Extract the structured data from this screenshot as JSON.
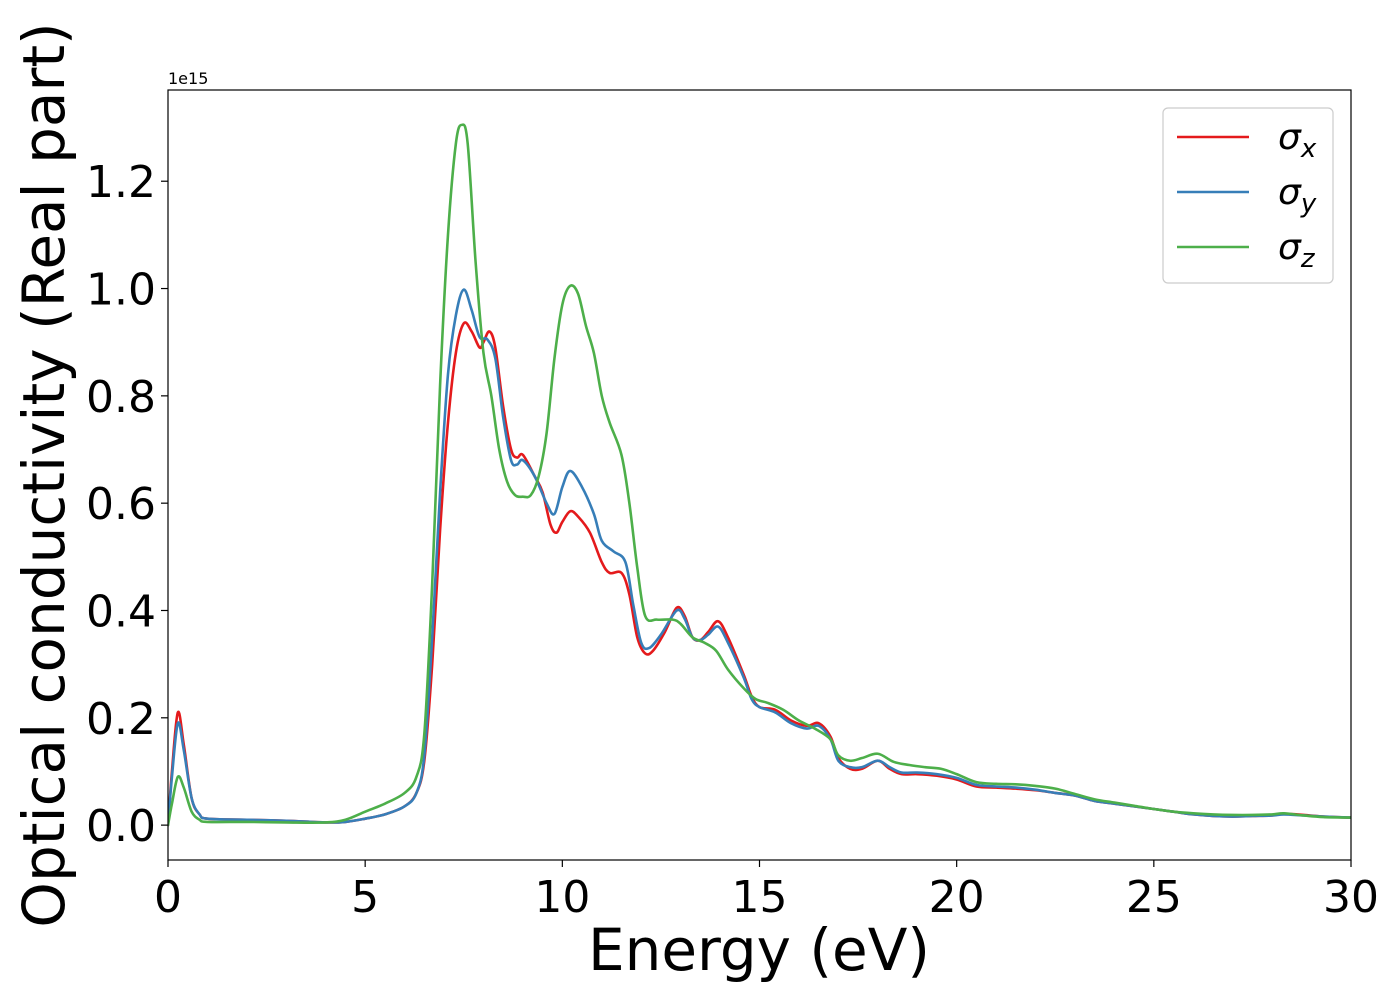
{
  "chart_data": {
    "type": "line",
    "xlabel": "Energy (eV)",
    "ylabel": "Optical conductivity (Real part)",
    "y_offset_label": "1e15",
    "y_multiplier": 1000000000000000.0,
    "xlim": [
      0,
      30
    ],
    "ylim": [
      -0.065,
      1.37
    ],
    "xticks": [
      0,
      5,
      10,
      15,
      20,
      25,
      30
    ],
    "xtick_labels": [
      "0",
      "5",
      "10",
      "15",
      "20",
      "25",
      "30"
    ],
    "yticks": [
      0.0,
      0.2,
      0.4,
      0.6,
      0.8,
      1.0,
      1.2
    ],
    "ytick_labels": [
      "0.0",
      "0.2",
      "0.4",
      "0.6",
      "0.8",
      "1.0",
      "1.2"
    ],
    "grid": false,
    "legend_position": "top-right",
    "series": [
      {
        "name": "σx",
        "name_base": "σ",
        "name_sub": "x",
        "color": "#e41a1c",
        "points": [
          [
            0,
            0.0
          ],
          [
            0.1,
            0.1
          ],
          [
            0.25,
            0.21
          ],
          [
            0.4,
            0.15
          ],
          [
            0.6,
            0.05
          ],
          [
            0.8,
            0.02
          ],
          [
            1.0,
            0.012
          ],
          [
            2,
            0.01
          ],
          [
            3,
            0.008
          ],
          [
            4,
            0.005
          ],
          [
            4.5,
            0.006
          ],
          [
            5,
            0.012
          ],
          [
            5.5,
            0.02
          ],
          [
            6,
            0.035
          ],
          [
            6.3,
            0.06
          ],
          [
            6.5,
            0.12
          ],
          [
            6.7,
            0.3
          ],
          [
            6.9,
            0.55
          ],
          [
            7.1,
            0.75
          ],
          [
            7.3,
            0.88
          ],
          [
            7.5,
            0.935
          ],
          [
            7.7,
            0.92
          ],
          [
            7.9,
            0.89
          ],
          [
            8.0,
            0.9
          ],
          [
            8.15,
            0.92
          ],
          [
            8.3,
            0.89
          ],
          [
            8.5,
            0.78
          ],
          [
            8.7,
            0.7
          ],
          [
            8.85,
            0.685
          ],
          [
            9.0,
            0.69
          ],
          [
            9.3,
            0.65
          ],
          [
            9.5,
            0.62
          ],
          [
            9.7,
            0.56
          ],
          [
            9.85,
            0.545
          ],
          [
            10.0,
            0.565
          ],
          [
            10.2,
            0.585
          ],
          [
            10.4,
            0.575
          ],
          [
            10.7,
            0.545
          ],
          [
            11.0,
            0.49
          ],
          [
            11.2,
            0.47
          ],
          [
            11.5,
            0.47
          ],
          [
            11.7,
            0.43
          ],
          [
            11.9,
            0.35
          ],
          [
            12.1,
            0.32
          ],
          [
            12.3,
            0.325
          ],
          [
            12.6,
            0.36
          ],
          [
            12.9,
            0.405
          ],
          [
            13.1,
            0.39
          ],
          [
            13.3,
            0.35
          ],
          [
            13.5,
            0.345
          ],
          [
            13.7,
            0.36
          ],
          [
            13.95,
            0.38
          ],
          [
            14.2,
            0.35
          ],
          [
            14.6,
            0.28
          ],
          [
            14.8,
            0.24
          ],
          [
            15,
            0.22
          ],
          [
            15.4,
            0.215
          ],
          [
            15.8,
            0.195
          ],
          [
            16.2,
            0.185
          ],
          [
            16.5,
            0.19
          ],
          [
            16.8,
            0.165
          ],
          [
            17.0,
            0.125
          ],
          [
            17.3,
            0.105
          ],
          [
            17.6,
            0.105
          ],
          [
            18.0,
            0.12
          ],
          [
            18.3,
            0.105
          ],
          [
            18.6,
            0.095
          ],
          [
            19,
            0.095
          ],
          [
            19.5,
            0.092
          ],
          [
            20,
            0.085
          ],
          [
            20.5,
            0.072
          ],
          [
            21,
            0.07
          ],
          [
            21.5,
            0.068
          ],
          [
            22,
            0.065
          ],
          [
            22.5,
            0.06
          ],
          [
            23,
            0.055
          ],
          [
            23.5,
            0.045
          ],
          [
            24,
            0.04
          ],
          [
            24.5,
            0.035
          ],
          [
            25,
            0.03
          ],
          [
            25.5,
            0.025
          ],
          [
            26,
            0.02
          ],
          [
            26.5,
            0.017
          ],
          [
            27,
            0.016
          ],
          [
            27.5,
            0.017
          ],
          [
            28,
            0.018
          ],
          [
            28.3,
            0.021
          ],
          [
            28.8,
            0.019
          ],
          [
            29.3,
            0.016
          ],
          [
            30,
            0.014
          ]
        ]
      },
      {
        "name": "σy",
        "name_base": "σ",
        "name_sub": "y",
        "color": "#377eb8",
        "points": [
          [
            0,
            0.0
          ],
          [
            0.1,
            0.09
          ],
          [
            0.25,
            0.19
          ],
          [
            0.4,
            0.14
          ],
          [
            0.6,
            0.05
          ],
          [
            0.8,
            0.02
          ],
          [
            1.0,
            0.012
          ],
          [
            2,
            0.01
          ],
          [
            3,
            0.008
          ],
          [
            4,
            0.005
          ],
          [
            4.5,
            0.006
          ],
          [
            5,
            0.012
          ],
          [
            5.5,
            0.02
          ],
          [
            6,
            0.035
          ],
          [
            6.3,
            0.06
          ],
          [
            6.5,
            0.13
          ],
          [
            6.7,
            0.35
          ],
          [
            6.9,
            0.62
          ],
          [
            7.1,
            0.84
          ],
          [
            7.3,
            0.95
          ],
          [
            7.5,
            0.998
          ],
          [
            7.7,
            0.96
          ],
          [
            7.9,
            0.91
          ],
          [
            8.1,
            0.905
          ],
          [
            8.3,
            0.87
          ],
          [
            8.5,
            0.76
          ],
          [
            8.7,
            0.68
          ],
          [
            8.85,
            0.672
          ],
          [
            9.0,
            0.68
          ],
          [
            9.3,
            0.65
          ],
          [
            9.6,
            0.6
          ],
          [
            9.8,
            0.58
          ],
          [
            10.0,
            0.63
          ],
          [
            10.2,
            0.66
          ],
          [
            10.5,
            0.63
          ],
          [
            10.8,
            0.58
          ],
          [
            11.0,
            0.53
          ],
          [
            11.3,
            0.51
          ],
          [
            11.6,
            0.49
          ],
          [
            11.8,
            0.41
          ],
          [
            12.0,
            0.34
          ],
          [
            12.2,
            0.33
          ],
          [
            12.5,
            0.355
          ],
          [
            12.9,
            0.4
          ],
          [
            13.1,
            0.385
          ],
          [
            13.3,
            0.35
          ],
          [
            13.5,
            0.345
          ],
          [
            13.7,
            0.355
          ],
          [
            13.95,
            0.37
          ],
          [
            14.2,
            0.34
          ],
          [
            14.6,
            0.275
          ],
          [
            14.8,
            0.235
          ],
          [
            15,
            0.22
          ],
          [
            15.4,
            0.21
          ],
          [
            15.8,
            0.19
          ],
          [
            16.2,
            0.18
          ],
          [
            16.5,
            0.185
          ],
          [
            16.8,
            0.16
          ],
          [
            17.0,
            0.12
          ],
          [
            17.3,
            0.108
          ],
          [
            17.6,
            0.108
          ],
          [
            18.0,
            0.12
          ],
          [
            18.3,
            0.108
          ],
          [
            18.6,
            0.098
          ],
          [
            19,
            0.098
          ],
          [
            19.5,
            0.095
          ],
          [
            20,
            0.088
          ],
          [
            20.5,
            0.075
          ],
          [
            21,
            0.072
          ],
          [
            21.5,
            0.07
          ],
          [
            22,
            0.066
          ],
          [
            22.5,
            0.06
          ],
          [
            23,
            0.055
          ],
          [
            23.5,
            0.045
          ],
          [
            24,
            0.04
          ],
          [
            24.5,
            0.035
          ],
          [
            25,
            0.03
          ],
          [
            25.5,
            0.025
          ],
          [
            26,
            0.02
          ],
          [
            26.5,
            0.017
          ],
          [
            27,
            0.016
          ],
          [
            27.5,
            0.017
          ],
          [
            28,
            0.018
          ],
          [
            28.3,
            0.02
          ],
          [
            28.8,
            0.018
          ],
          [
            29.3,
            0.016
          ],
          [
            30,
            0.014
          ]
        ]
      },
      {
        "name": "σz",
        "name_base": "σ",
        "name_sub": "z",
        "color": "#4daf4a",
        "points": [
          [
            0,
            0.0
          ],
          [
            0.1,
            0.04
          ],
          [
            0.25,
            0.09
          ],
          [
            0.4,
            0.07
          ],
          [
            0.6,
            0.025
          ],
          [
            0.8,
            0.01
          ],
          [
            1.0,
            0.006
          ],
          [
            2,
            0.006
          ],
          [
            3,
            0.005
          ],
          [
            4,
            0.005
          ],
          [
            4.5,
            0.01
          ],
          [
            5,
            0.025
          ],
          [
            5.5,
            0.04
          ],
          [
            6,
            0.06
          ],
          [
            6.3,
            0.09
          ],
          [
            6.5,
            0.17
          ],
          [
            6.7,
            0.45
          ],
          [
            6.9,
            0.82
          ],
          [
            7.1,
            1.1
          ],
          [
            7.3,
            1.27
          ],
          [
            7.45,
            1.305
          ],
          [
            7.6,
            1.27
          ],
          [
            7.8,
            1.05
          ],
          [
            8.0,
            0.88
          ],
          [
            8.2,
            0.8
          ],
          [
            8.4,
            0.7
          ],
          [
            8.6,
            0.64
          ],
          [
            8.8,
            0.615
          ],
          [
            9.0,
            0.612
          ],
          [
            9.2,
            0.615
          ],
          [
            9.4,
            0.65
          ],
          [
            9.6,
            0.73
          ],
          [
            9.8,
            0.87
          ],
          [
            10.0,
            0.97
          ],
          [
            10.2,
            1.005
          ],
          [
            10.4,
            0.99
          ],
          [
            10.6,
            0.93
          ],
          [
            10.8,
            0.88
          ],
          [
            11.0,
            0.8
          ],
          [
            11.2,
            0.75
          ],
          [
            11.5,
            0.69
          ],
          [
            11.7,
            0.6
          ],
          [
            11.9,
            0.48
          ],
          [
            12.1,
            0.39
          ],
          [
            12.4,
            0.383
          ],
          [
            12.8,
            0.383
          ],
          [
            13.0,
            0.375
          ],
          [
            13.3,
            0.35
          ],
          [
            13.6,
            0.34
          ],
          [
            13.9,
            0.325
          ],
          [
            14.2,
            0.29
          ],
          [
            14.6,
            0.255
          ],
          [
            14.9,
            0.235
          ],
          [
            15.2,
            0.228
          ],
          [
            15.6,
            0.215
          ],
          [
            16.0,
            0.195
          ],
          [
            16.4,
            0.18
          ],
          [
            16.8,
            0.16
          ],
          [
            17.0,
            0.13
          ],
          [
            17.3,
            0.12
          ],
          [
            17.6,
            0.125
          ],
          [
            18.0,
            0.133
          ],
          [
            18.4,
            0.118
          ],
          [
            18.8,
            0.112
          ],
          [
            19.2,
            0.108
          ],
          [
            19.6,
            0.105
          ],
          [
            20,
            0.095
          ],
          [
            20.5,
            0.08
          ],
          [
            21,
            0.077
          ],
          [
            21.5,
            0.076
          ],
          [
            22,
            0.073
          ],
          [
            22.5,
            0.068
          ],
          [
            23,
            0.058
          ],
          [
            23.5,
            0.048
          ],
          [
            24,
            0.042
          ],
          [
            24.5,
            0.036
          ],
          [
            25,
            0.03
          ],
          [
            25.5,
            0.025
          ],
          [
            26,
            0.022
          ],
          [
            26.5,
            0.02
          ],
          [
            27,
            0.019
          ],
          [
            27.5,
            0.019
          ],
          [
            28,
            0.02
          ],
          [
            28.3,
            0.022
          ],
          [
            28.8,
            0.018
          ],
          [
            29.3,
            0.015
          ],
          [
            30,
            0.014
          ]
        ]
      }
    ]
  }
}
